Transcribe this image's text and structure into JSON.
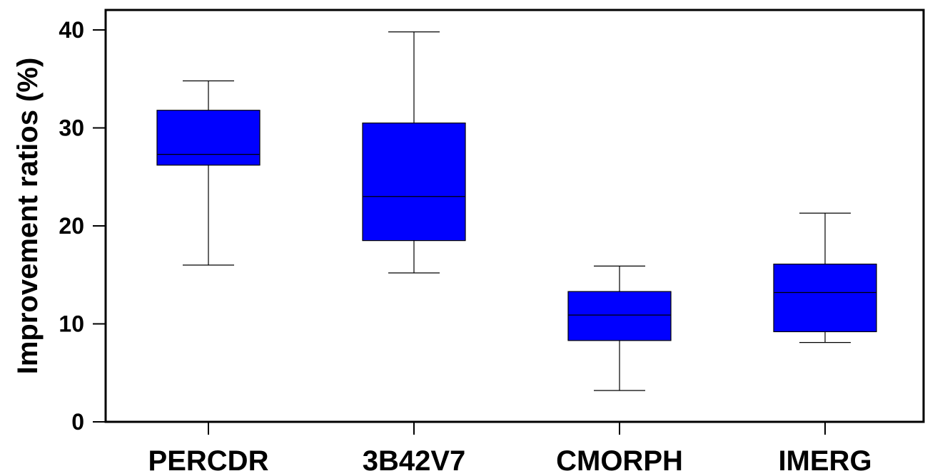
{
  "chart_data": {
    "type": "boxplot",
    "title": "",
    "xlabel": "",
    "ylabel": "Improvement ratios (%)",
    "ylim": [
      0,
      40
    ],
    "yticks": [
      0,
      10,
      20,
      30,
      40
    ],
    "grid": false,
    "box_color": "#0000ff",
    "categories": [
      "PERCDR",
      "3B42V7",
      "CMORPH",
      "IMERG"
    ],
    "boxes": [
      {
        "category": "PERCDR",
        "whisker_low": 16.0,
        "q1": 26.2,
        "median": 27.3,
        "q3": 31.8,
        "whisker_high": 34.8
      },
      {
        "category": "3B42V7",
        "whisker_low": 15.2,
        "q1": 18.5,
        "median": 23.0,
        "q3": 30.5,
        "whisker_high": 39.8
      },
      {
        "category": "CMORPH",
        "whisker_low": 3.2,
        "q1": 8.3,
        "median": 10.9,
        "q3": 13.3,
        "whisker_high": 15.9
      },
      {
        "category": "IMERG",
        "whisker_low": 8.1,
        "q1": 9.2,
        "median": 13.2,
        "q3": 16.1,
        "whisker_high": 21.3
      }
    ]
  }
}
